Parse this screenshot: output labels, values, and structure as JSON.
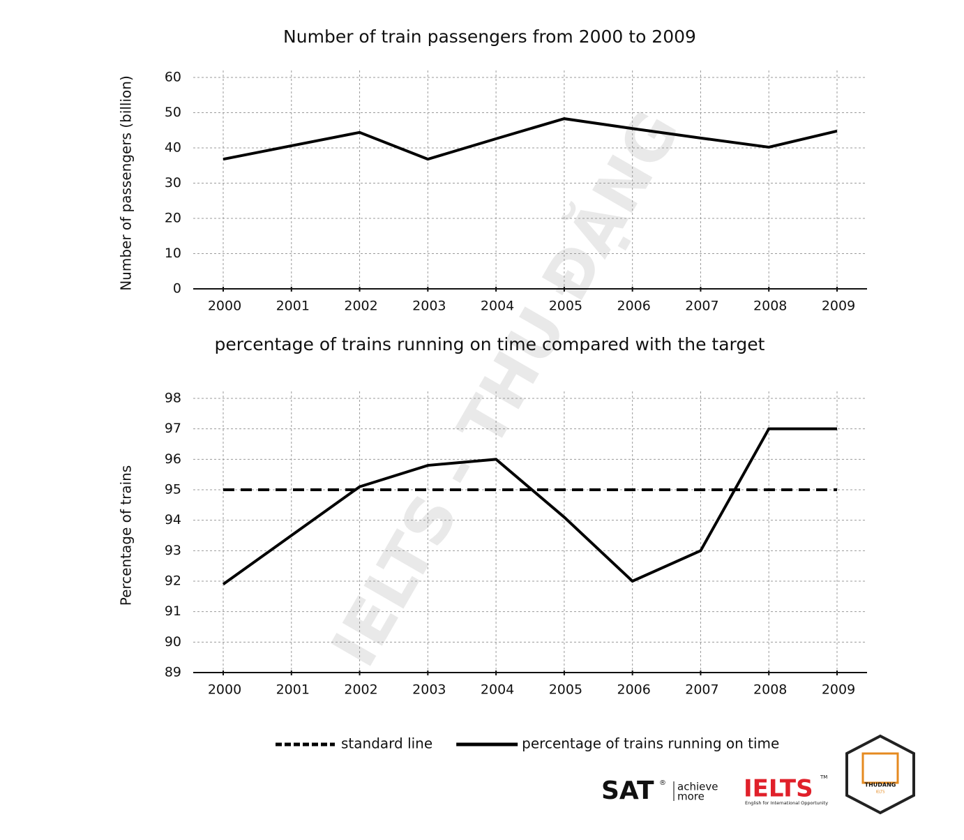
{
  "chart_data": [
    {
      "type": "line",
      "title": "Number of train passengers from 2000 to 2009",
      "y_label": "Number of passengers (billion)",
      "categories": [
        "2000",
        "2001",
        "2002",
        "2003",
        "2004",
        "2005",
        "2006",
        "2007",
        "2008",
        "2009"
      ],
      "series": [
        {
          "name": null,
          "color": "#000000",
          "dashed": false,
          "values": [
            36.8,
            40.6,
            44.4,
            36.8,
            42.6,
            48.3,
            45.5,
            42.8,
            40.2,
            44.8
          ]
        }
      ],
      "ylim": [
        0,
        60
      ],
      "yticks": [
        0,
        10,
        20,
        30,
        40,
        50,
        60
      ],
      "grid": true
    },
    {
      "type": "line",
      "title": "percentage of trains running on time compared with the target",
      "y_label": "Percentage of trains",
      "categories": [
        "2000",
        "2001",
        "2002",
        "2003",
        "2004",
        "2005",
        "2006",
        "2007",
        "2008",
        "2009"
      ],
      "series": [
        {
          "name": "standard line",
          "color": "#000000",
          "dashed": true,
          "values": [
            95,
            95,
            95,
            95,
            95,
            95,
            95,
            95,
            95,
            95
          ]
        },
        {
          "name": "percentage of trains running on time",
          "color": "#000000",
          "dashed": false,
          "values": [
            91.9,
            93.5,
            95.1,
            95.8,
            96,
            94.1,
            92,
            93,
            97,
            97
          ]
        }
      ],
      "ylim": [
        89,
        98
      ],
      "yticks": [
        89,
        90,
        91,
        92,
        93,
        94,
        95,
        96,
        97,
        98
      ],
      "grid": true,
      "legend": "bottom"
    }
  ],
  "branding": {
    "sat": "SAT",
    "sat_mark": "®",
    "sat_tagline_1": "achieve",
    "sat_tagline_2": "more",
    "ielts": "IELTS",
    "ielts_mark": "TM",
    "ielts_tagline": "English for International Opportunity",
    "badge": "THUDANG",
    "badge_sub": "IELTS",
    "watermark": "IELTS - THU ĐẶNG"
  }
}
